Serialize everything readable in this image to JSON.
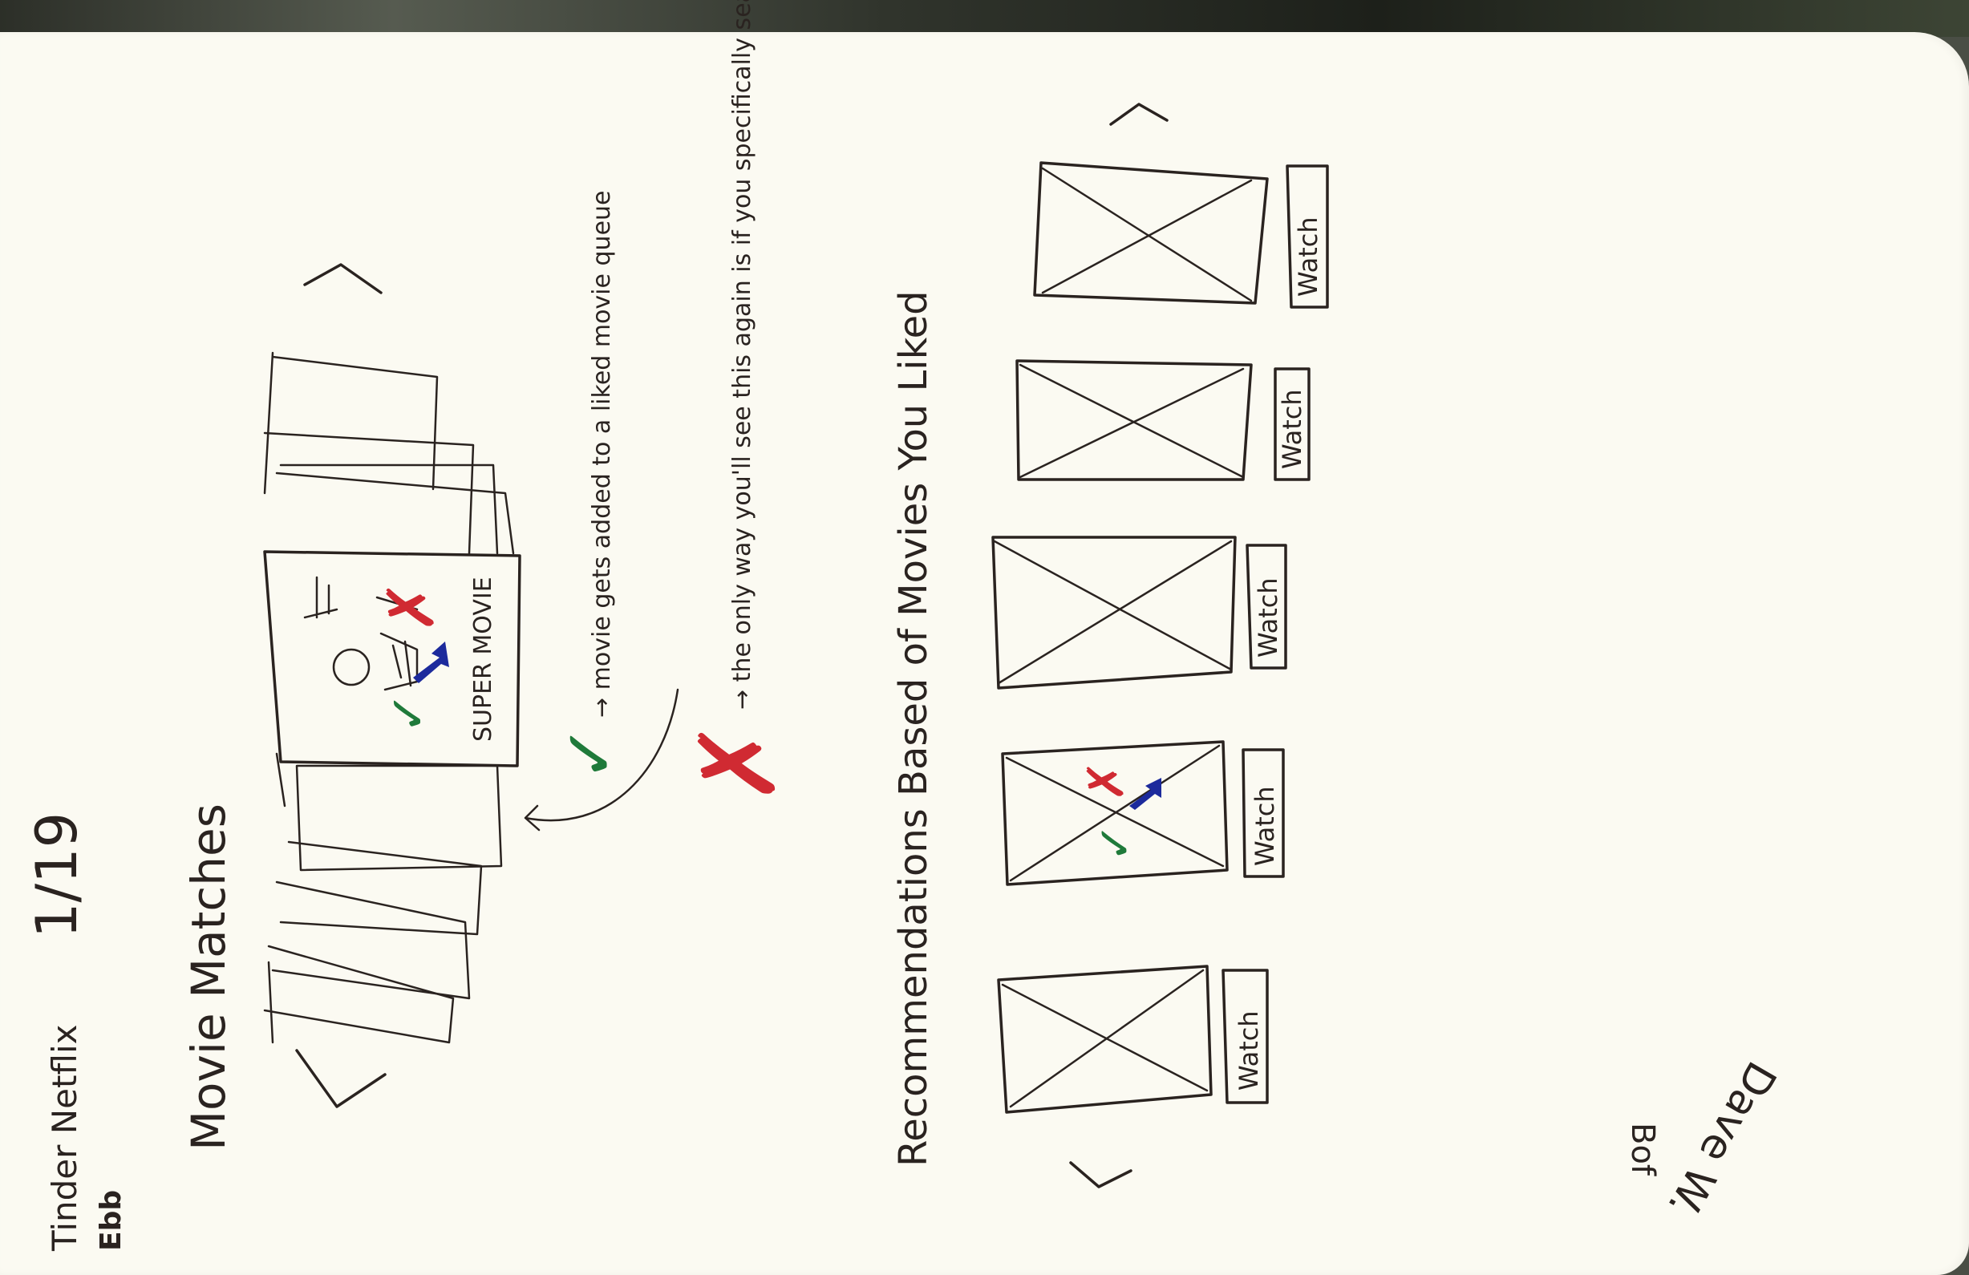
{
  "sketch": {
    "header": {
      "app_name": "Tinder Netflix",
      "author_initials": "Ebb",
      "date": "1/19",
      "section_title": "Movie Matches"
    },
    "featured_card": {
      "poster_title": "SUPER MOVIE",
      "like_symbol": "✓",
      "dislike_symbol": "✗"
    },
    "annotations": {
      "like_note": "→ movie gets added to a liked movie queue",
      "dislike_note": "→ the only way you'll see this again is if you specifically search for it"
    },
    "recommendations": {
      "title": "Recommendations Based of Movies You Liked",
      "tiles": [
        {
          "button": "Watch"
        },
        {
          "button": "Watch"
        },
        {
          "button": "Watch"
        },
        {
          "button": "Watch"
        },
        {
          "button": "Watch"
        }
      ]
    },
    "signature": {
      "initials": "Bof",
      "name": "Dave W."
    },
    "colors": {
      "ink": "#2a2320",
      "like_green": "#1f7a3a",
      "dislike_red": "#d02a32",
      "arrow_blue": "#1c2a9c",
      "paper": "#fbfaf2"
    }
  }
}
